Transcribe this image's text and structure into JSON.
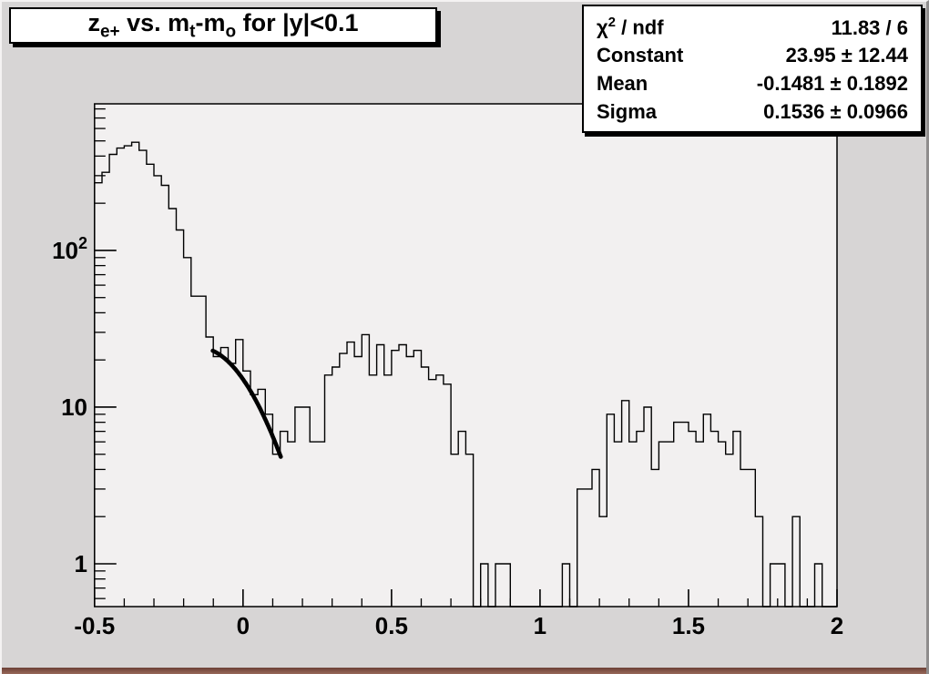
{
  "title": {
    "plain": "z_e+ vs. m_t-m_o for |y|<0.1",
    "p1": "z",
    "s1": "e+",
    "p2": " vs. m",
    "s2": "t",
    "p3": "-m",
    "s3": "o",
    "p4": " for |y|<0.1"
  },
  "stats": {
    "row1": {
      "label_chi": "χ",
      "label_sup": "2",
      "label_rest": " / ndf",
      "value": "11.83 / 6"
    },
    "row2": {
      "label": "Constant",
      "value": "23.95 ± 12.44"
    },
    "row3": {
      "label": "Mean",
      "value": "-0.1481 ± 0.1892"
    },
    "row4": {
      "label": "Sigma",
      "value": "0.1536 ± 0.0966"
    }
  },
  "colors": {
    "canvas_bg": "#d7d5d5",
    "frame_bg": "#f2f0f0",
    "axis": "#000000",
    "histogram": "#000000",
    "fit_curve": "#000000",
    "box_bg": "#ffffff",
    "box_shadow": "#000000",
    "bottom_edge": "#7d4f44"
  },
  "chart_data": {
    "type": "bar",
    "subtype": "step-histogram",
    "title": "z_e+ vs. m_t-m_o for |y|<0.1",
    "xlabel": "",
    "ylabel": "",
    "ylog": true,
    "grid": false,
    "xlim": [
      -0.5,
      2
    ],
    "ylim": [
      0.533,
      862
    ],
    "x_start": -0.5,
    "bin_width": 0.025,
    "n_bins": 100,
    "values": [
      270,
      315,
      410,
      450,
      465,
      490,
      435,
      355,
      300,
      260,
      185,
      135,
      90,
      51,
      51,
      28,
      21,
      24,
      19,
      27,
      17,
      12,
      13,
      9,
      5,
      7,
      6,
      10,
      10,
      6,
      6,
      16,
      18,
      22,
      26,
      21,
      29,
      16,
      25,
      16,
      23,
      25,
      21,
      23,
      18,
      15,
      16,
      14,
      5,
      7,
      5,
      0,
      1,
      0,
      1,
      1,
      0,
      0,
      0,
      0,
      0,
      0,
      0,
      1,
      0,
      3,
      3,
      4,
      2,
      9,
      6,
      11,
      6,
      7,
      10,
      4,
      6,
      6,
      8,
      8,
      7,
      6,
      9,
      7,
      6,
      5,
      7,
      4,
      4,
      2,
      0,
      1,
      1,
      0,
      2,
      0,
      0,
      1,
      0,
      0
    ],
    "x_major_ticks": [
      -0.5,
      0,
      0.5,
      1,
      1.5,
      2
    ],
    "x_tick_labels": [
      "-0.5",
      "0",
      "0.5",
      "1",
      "1.5",
      "2"
    ],
    "x_minor_step": 0.1,
    "y_major_ticks": [
      1,
      10,
      100
    ],
    "y_tick_labels": [
      "1",
      "10",
      "10^2"
    ],
    "fit": {
      "shape": "gaussian",
      "constant": 23.95,
      "mean": -0.1481,
      "sigma": 0.1536,
      "draw_range": [
        -0.102,
        0.127
      ]
    }
  }
}
